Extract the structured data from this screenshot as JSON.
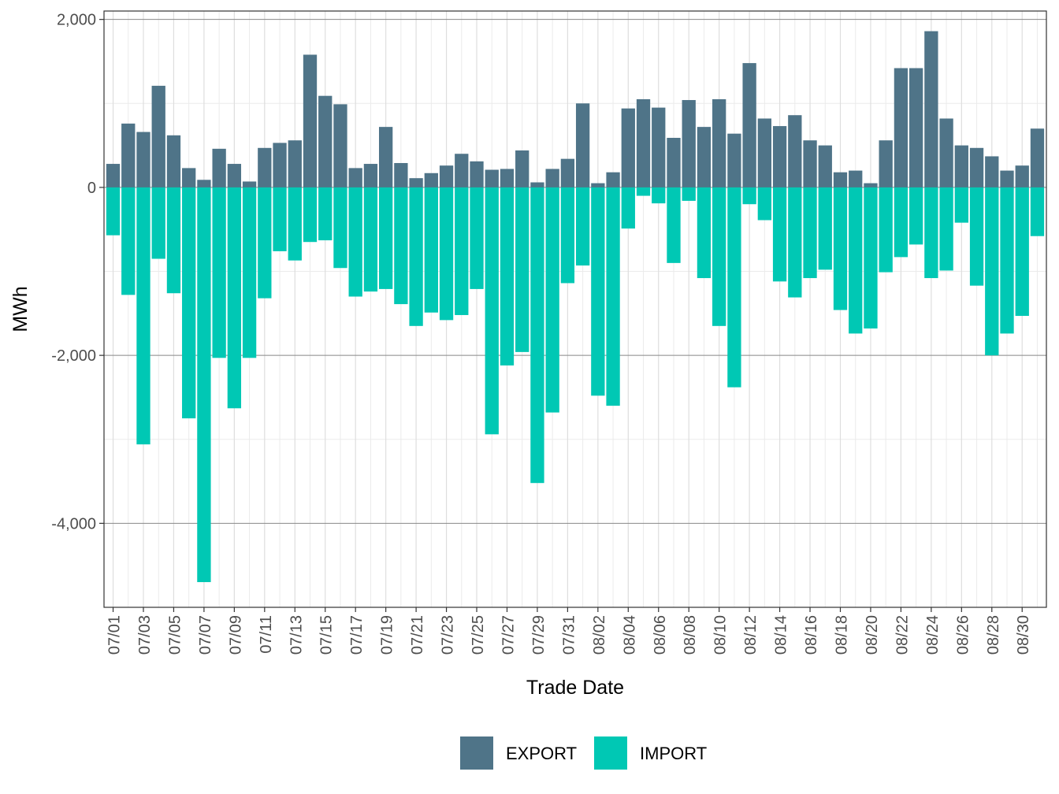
{
  "chart_data": {
    "type": "bar",
    "stacking": "diverging",
    "xlabel": "Trade Date",
    "ylabel": "MWh",
    "ylim": [
      -5000,
      2000
    ],
    "yticks": [
      2000,
      0,
      -2000,
      -4000
    ],
    "ytick_labels": [
      "2,000",
      "0",
      "-2,000",
      "-4,000"
    ],
    "grid": true,
    "legend_position": "bottom",
    "categories": [
      "07/01",
      "07/02",
      "07/03",
      "07/04",
      "07/05",
      "07/06",
      "07/07",
      "07/08",
      "07/09",
      "07/10",
      "07/11",
      "07/12",
      "07/13",
      "07/14",
      "07/15",
      "07/16",
      "07/17",
      "07/18",
      "07/19",
      "07/20",
      "07/21",
      "07/22",
      "07/23",
      "07/24",
      "07/25",
      "07/26",
      "07/27",
      "07/28",
      "07/29",
      "07/30",
      "07/31",
      "08/01",
      "08/02",
      "08/03",
      "08/04",
      "08/05",
      "08/06",
      "08/07",
      "08/08",
      "08/09",
      "08/10",
      "08/11",
      "08/12",
      "08/13",
      "08/14",
      "08/15",
      "08/16",
      "08/17",
      "08/18",
      "08/19",
      "08/20",
      "08/21",
      "08/22",
      "08/23",
      "08/24",
      "08/25",
      "08/26",
      "08/27",
      "08/28",
      "08/29",
      "08/30",
      "08/31"
    ],
    "tick_every": 2,
    "series": [
      {
        "name": "EXPORT",
        "color": "#4f7488",
        "values": [
          280,
          760,
          660,
          1210,
          620,
          230,
          90,
          460,
          280,
          70,
          470,
          530,
          560,
          1580,
          1090,
          990,
          230,
          280,
          720,
          290,
          110,
          170,
          260,
          400,
          310,
          210,
          220,
          440,
          60,
          220,
          340,
          1000,
          50,
          180,
          940,
          1050,
          950,
          590,
          1040,
          720,
          1050,
          640,
          1480,
          820,
          730,
          860,
          560,
          500,
          180,
          200,
          50,
          560,
          1420,
          1420,
          1860,
          820,
          500,
          470,
          370,
          200,
          260,
          700
        ]
      },
      {
        "name": "IMPORT",
        "color": "#00c8b4",
        "values": [
          -570,
          -1280,
          -3060,
          -850,
          -1260,
          -2750,
          -4700,
          -2030,
          -2630,
          -2030,
          -1320,
          -760,
          -870,
          -650,
          -630,
          -960,
          -1300,
          -1240,
          -1210,
          -1390,
          -1650,
          -1490,
          -1580,
          -1520,
          -1210,
          -2940,
          -2120,
          -1960,
          -3520,
          -2680,
          -1140,
          -930,
          -2480,
          -2600,
          -490,
          -100,
          -190,
          -900,
          -160,
          -1080,
          -1650,
          -2380,
          -200,
          -390,
          -1120,
          -1310,
          -1080,
          -980,
          -1460,
          -1740,
          -1680,
          -1010,
          -830,
          -680,
          -1080,
          -990,
          -420,
          -1170,
          -2000,
          -1740,
          -1530,
          -580
        ]
      }
    ]
  }
}
